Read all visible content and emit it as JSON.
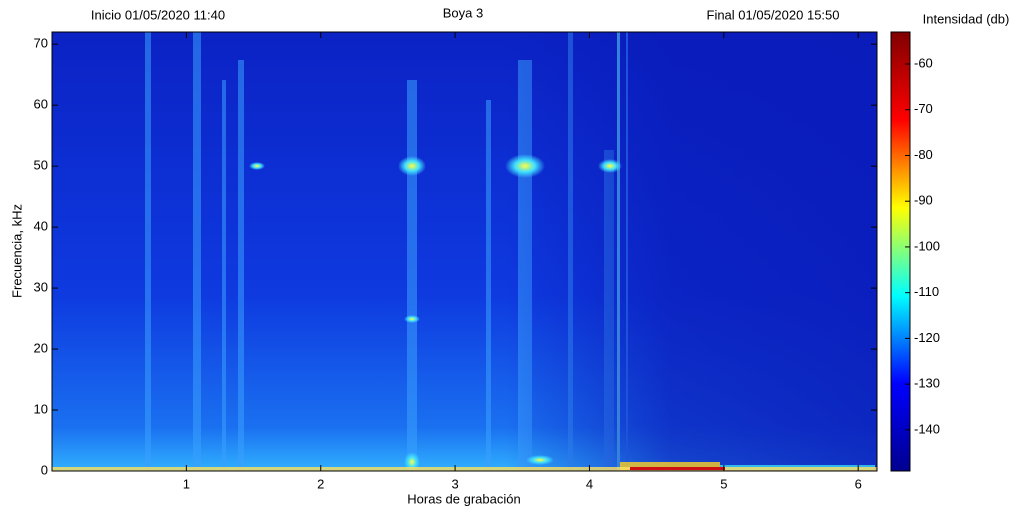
{
  "chart_data": {
    "type": "spectrogram",
    "title": "Boya 3",
    "start_label": "Inicio 01/05/2020 11:40",
    "end_label": "Final 01/05/2020 15:50",
    "x_label": "Horas de grabación",
    "y_label": "Frecuencia, kHz",
    "colorbar_label": "Intensidad (db)",
    "xlim": [
      0,
      6.14
    ],
    "xticks": [
      1,
      2,
      3,
      4,
      5,
      6
    ],
    "ylim": [
      0,
      72
    ],
    "yticks": [
      0,
      10,
      20,
      30,
      40,
      50,
      60,
      70
    ],
    "clim": [
      -149,
      -53
    ],
    "cticks": [
      -140,
      -130,
      -120,
      -110,
      -100,
      -90,
      -80,
      -70,
      -60
    ],
    "colormap": [
      "#00008f",
      "#0000ff",
      "#00ffff",
      "#ffff00",
      "#ff0000",
      "#800000"
    ]
  }
}
